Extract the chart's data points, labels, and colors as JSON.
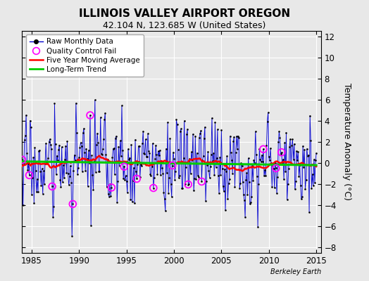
{
  "title": "ILLINOIS VALLEY AIRPORT OREGON",
  "subtitle": "42.104 N, 123.685 W (United States)",
  "ylabel": "Temperature Anomaly (°C)",
  "credit": "Berkeley Earth",
  "xlim": [
    1984.0,
    2015.5
  ],
  "ylim": [
    -8.5,
    12.5
  ],
  "yticks": [
    -8,
    -6,
    -4,
    -2,
    0,
    2,
    4,
    6,
    8,
    10,
    12
  ],
  "xticks": [
    1985,
    1990,
    1995,
    2000,
    2005,
    2010,
    2015
  ],
  "bg_color": "#e8e8e8",
  "grid_color": "white",
  "raw_line_color": "#0000cc",
  "raw_fill_color": "#9999ff",
  "raw_marker_color": "black",
  "ma_color": "red",
  "trend_color": "#00cc00",
  "qc_color": "#ff00ff",
  "seed": 17
}
